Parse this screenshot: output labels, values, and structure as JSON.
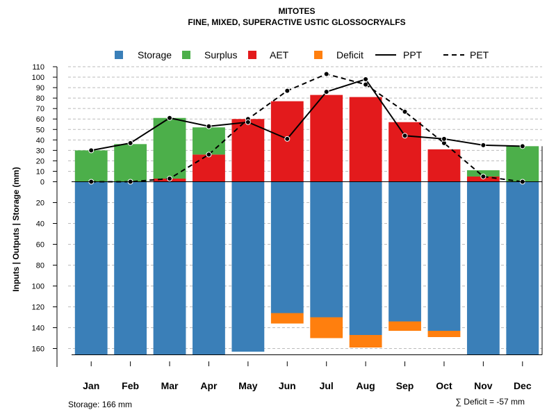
{
  "chart_data": {
    "type": "bar",
    "title": "MITOTES",
    "subtitle": "FINE, MIXED, SUPERACTIVE USTIC GLOSSOCRYALFS",
    "ylabel": "Inputs | Outputs | Storage    (mm)",
    "categories": [
      "Jan",
      "Feb",
      "Mar",
      "Apr",
      "May",
      "Jun",
      "Jul",
      "Aug",
      "Sep",
      "Oct",
      "Nov",
      "Dec"
    ],
    "legend": [
      "Storage",
      "Surplus",
      "AET",
      "Deficit",
      "PPT",
      "PET"
    ],
    "colors": {
      "storage": "#3a7fb8",
      "surplus": "#4caf4a",
      "aet": "#e31a1c",
      "deficit": "#ff7f0e",
      "line": "#000000"
    },
    "upper_ticks": [
      "0",
      "10",
      "20",
      "30",
      "40",
      "50",
      "60",
      "70",
      "80",
      "90",
      "100",
      "110"
    ],
    "lower_ticks": [
      "20",
      "40",
      "60",
      "80",
      "100",
      "120",
      "140",
      "160"
    ],
    "ylim_upper": [
      0,
      110
    ],
    "ylim_lower": [
      0,
      166
    ],
    "series": [
      {
        "name": "AET",
        "values": [
          0,
          0,
          3,
          26,
          60,
          77,
          83,
          81,
          57,
          31,
          5,
          0
        ]
      },
      {
        "name": "Surplus",
        "values": [
          30,
          36,
          58,
          26,
          0,
          0,
          0,
          0,
          0,
          0,
          6,
          34
        ]
      },
      {
        "name": "Storage",
        "values": [
          166,
          166,
          166,
          166,
          163,
          126,
          130,
          147,
          134,
          143,
          166,
          166
        ]
      },
      {
        "name": "Deficit",
        "values": [
          0,
          0,
          0,
          0,
          0,
          10,
          20,
          12,
          9,
          6,
          0,
          0
        ]
      },
      {
        "name": "PPT",
        "values": [
          30,
          37,
          61,
          53,
          57,
          41,
          86,
          98,
          44,
          41,
          35,
          34
        ]
      },
      {
        "name": "PET",
        "values": [
          0,
          0,
          3,
          26,
          60,
          87,
          103,
          93,
          67,
          37,
          5,
          0
        ]
      }
    ],
    "storage_note": "Storage: 166 mm",
    "deficit_note": "∑ Deficit = -57 mm"
  }
}
